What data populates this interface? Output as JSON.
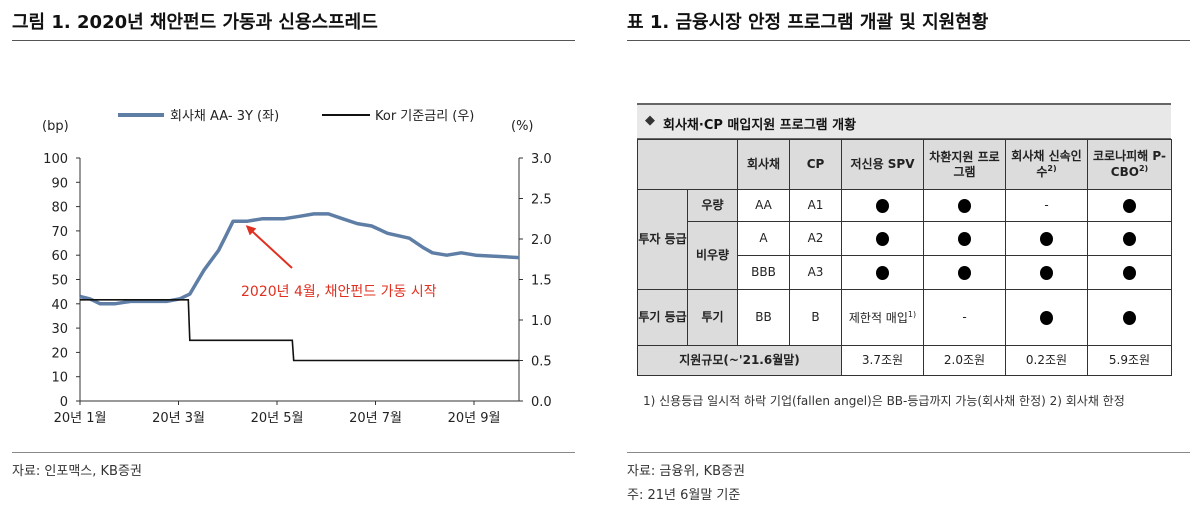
{
  "left_panel": {
    "title": "그림 1. 2020년 채안펀드 가동과 신용스프레드",
    "source": "자료: 인포맥스, KB증권"
  },
  "right_panel": {
    "title": "표 1. 금융시장 안정 프로그램 개괄 및 지원현황",
    "source": "자료: 금융위, KB증권",
    "note": "주: 21년 6월말 기준"
  },
  "chart_data": {
    "type": "line",
    "title": "",
    "left_axis": {
      "label": "(bp)",
      "ticks": [
        0,
        10,
        20,
        30,
        40,
        50,
        60,
        70,
        80,
        90,
        100
      ],
      "range": [
        0,
        100
      ]
    },
    "right_axis": {
      "label": "(%)",
      "ticks": [
        "0.0",
        "0.5",
        "1.0",
        "1.5",
        "2.0",
        "2.5",
        "3.0"
      ],
      "range": [
        0,
        3.0
      ]
    },
    "x_ticks": [
      "20년 1월",
      "20년 3월",
      "20년 5월",
      "20년 7월",
      "20년 9월"
    ],
    "x_range": [
      "2020-01-01",
      "2020-10-31"
    ],
    "legend_position": "top",
    "series": [
      {
        "name": "회사채  AA- 3Y (좌)",
        "axis": "left",
        "color": "#5f7ea6",
        "points": [
          [
            "2020-01-01",
            43
          ],
          [
            "2020-01-08",
            42
          ],
          [
            "2020-01-15",
            40
          ],
          [
            "2020-01-25",
            40
          ],
          [
            "2020-02-05",
            41
          ],
          [
            "2020-02-20",
            41
          ],
          [
            "2020-03-01",
            41
          ],
          [
            "2020-03-10",
            42
          ],
          [
            "2020-03-17",
            44
          ],
          [
            "2020-03-22",
            49
          ],
          [
            "2020-03-27",
            54
          ],
          [
            "2020-04-01",
            58
          ],
          [
            "2020-04-06",
            62
          ],
          [
            "2020-04-11",
            68
          ],
          [
            "2020-04-16",
            74
          ],
          [
            "2020-04-26",
            74
          ],
          [
            "2020-05-06",
            75
          ],
          [
            "2020-05-21",
            75
          ],
          [
            "2020-06-01",
            76
          ],
          [
            "2020-06-11",
            77
          ],
          [
            "2020-06-21",
            77
          ],
          [
            "2020-07-01",
            75
          ],
          [
            "2020-07-11",
            73
          ],
          [
            "2020-07-21",
            72
          ],
          [
            "2020-08-01",
            69
          ],
          [
            "2020-08-16",
            67
          ],
          [
            "2020-08-26",
            63
          ],
          [
            "2020-09-01",
            61
          ],
          [
            "2020-09-11",
            60
          ],
          [
            "2020-09-21",
            61
          ],
          [
            "2020-10-01",
            60
          ],
          [
            "2020-10-31",
            59
          ]
        ]
      },
      {
        "name": "Kor 기준금리 (우)",
        "axis": "right",
        "color": "#111111",
        "points": [
          [
            "2020-01-01",
            1.25
          ],
          [
            "2020-03-16",
            1.25
          ],
          [
            "2020-03-17",
            0.75
          ],
          [
            "2020-05-27",
            0.75
          ],
          [
            "2020-05-28",
            0.5
          ],
          [
            "2020-10-31",
            0.5
          ]
        ]
      }
    ],
    "annotation": {
      "text": "2020년 4월, 채안펀드 가동 시작",
      "color": "#e03020",
      "points_to": [
        "2020-04-22",
        74
      ]
    }
  },
  "program_table": {
    "title": "회사채·CP 매입지원 프로그램 개황",
    "columns": [
      "회사채",
      "CP",
      "저신용 SPV",
      "차환지원 프로그램",
      "회사채 신속인수",
      "코로나피해 P-CBO"
    ],
    "column_footnotes": {
      "회사채 신속인수": "2)",
      "코로나피해 P-CBO": "2)"
    },
    "groups": [
      {
        "name": "투자 등급",
        "rows": [
          {
            "grade": "우량",
            "bond": "AA",
            "cp": "A1",
            "cells": [
              "dot",
              "dot",
              "-",
              "dot"
            ]
          },
          {
            "grade": "비우량",
            "bond": "A",
            "cp": "A2",
            "cells": [
              "dot",
              "dot",
              "dot",
              "dot"
            ]
          },
          {
            "grade": "비우량",
            "bond": "BBB",
            "cp": "A3",
            "cells": [
              "dot",
              "dot",
              "dot",
              "dot"
            ]
          }
        ]
      },
      {
        "name": "투기 등급",
        "rows": [
          {
            "grade": "투기",
            "bond": "BB",
            "cp": "B",
            "cells": [
              "제한적 매입",
              "-",
              "dot",
              "dot"
            ],
            "first_cell_footnote": "1)"
          }
        ]
      }
    ],
    "total": {
      "label": "지원규모(~'21.6월말)",
      "values": [
        "3.7조원",
        "2.0조원",
        "0.2조원",
        "5.9조원"
      ]
    },
    "footnote": "1) 신용등급 일시적 하락 기업(fallen angel)은 BB-등급까지 가능(회사채 한정) 2) 회사채 한정"
  }
}
